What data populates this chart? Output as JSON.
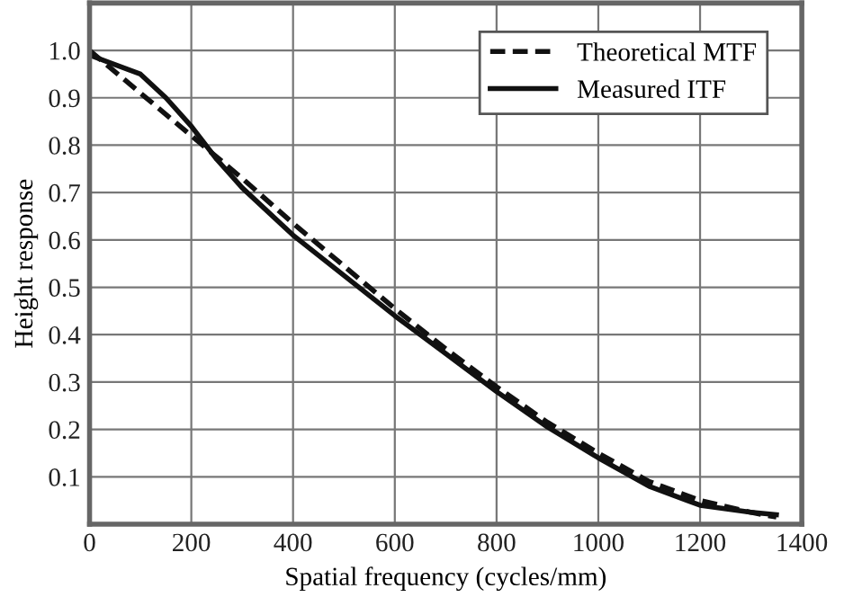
{
  "chart_data": {
    "type": "line",
    "xlabel": "Spatial frequency (cycles/mm)",
    "ylabel": "Height response",
    "xlim": [
      0,
      1400
    ],
    "ylim": [
      0,
      1.1
    ],
    "xticks": [
      0,
      200,
      400,
      600,
      800,
      1000,
      1200,
      1400
    ],
    "yticks": [
      0.1,
      0.2,
      0.3,
      0.4,
      0.5,
      0.6,
      0.7,
      0.8,
      0.9,
      {
        "value": 1,
        "label": "1.0"
      }
    ],
    "grid": true,
    "legend": "top right",
    "marker": "none",
    "series": [
      {
        "name": "Theoretical MTF",
        "color": "#111111",
        "line_style": "dashed",
        "x": [
          0,
          100,
          200,
          300,
          400,
          500,
          600,
          700,
          800,
          900,
          1000,
          1100,
          1200,
          1300,
          1350
        ],
        "values": [
          1.0,
          0.91,
          0.82,
          0.73,
          0.635,
          0.545,
          0.455,
          0.37,
          0.29,
          0.215,
          0.15,
          0.09,
          0.05,
          0.025,
          0.015
        ]
      },
      {
        "name": "Measured ITF",
        "color": "#111111",
        "line_style": "solid",
        "x": [
          0,
          50,
          100,
          150,
          200,
          250,
          300,
          400,
          500,
          600,
          700,
          800,
          900,
          1000,
          1100,
          1200,
          1300,
          1350
        ],
        "values": [
          0.99,
          0.97,
          0.95,
          0.9,
          0.84,
          0.77,
          0.71,
          0.61,
          0.525,
          0.44,
          0.36,
          0.28,
          0.205,
          0.14,
          0.08,
          0.04,
          0.025,
          0.02
        ]
      }
    ]
  }
}
